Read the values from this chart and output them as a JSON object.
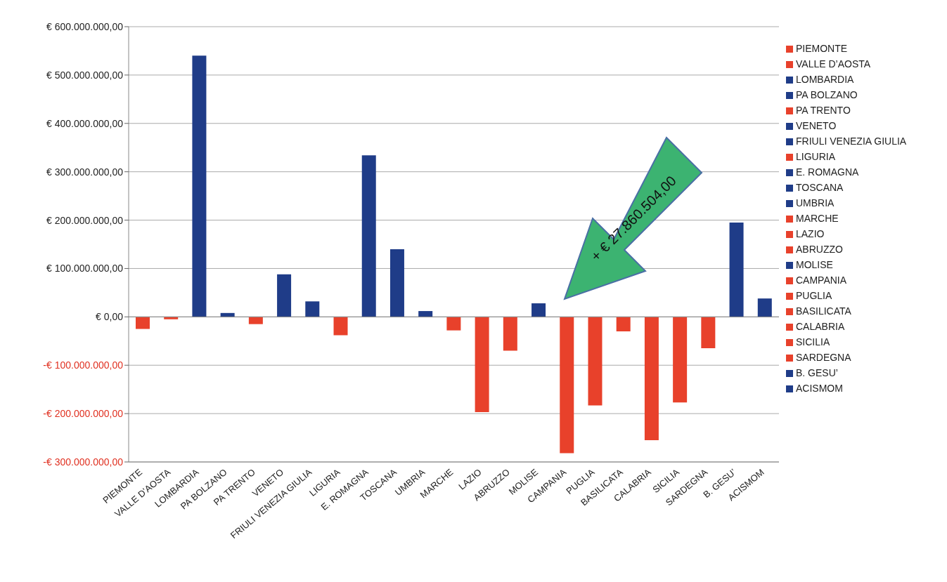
{
  "chart_data": {
    "type": "bar",
    "categories": [
      "PIEMONTE",
      "VALLE D’AOSTA",
      "LOMBARDIA",
      "PA BOLZANO",
      "PA TRENTO",
      "VENETO",
      "FRIULI VENEZIA GIULIA",
      "LIGURIA",
      "E. ROMAGNA",
      "TOSCANA",
      "UMBRIA",
      "MARCHE",
      "LAZIO",
      "ABRUZZO",
      "MOLISE",
      "CAMPANIA",
      "PUGLIA",
      "BASILICATA",
      "CALABRIA",
      "SICILIA",
      "SARDEGNA",
      "B. GESU’",
      "ACISMOM"
    ],
    "series": [
      {
        "name": "PIEMONTE",
        "color": "#e8412b",
        "values": [
          -25000000,
          null,
          null,
          null,
          null,
          null,
          null,
          null,
          null,
          null,
          null,
          null,
          null,
          null,
          null,
          null,
          null,
          null,
          null,
          null,
          null,
          null,
          null
        ]
      },
      {
        "name": "VALLE D’AOSTA",
        "color": "#e8412b",
        "values": [
          null,
          -5000000,
          null,
          null,
          null,
          null,
          null,
          null,
          null,
          null,
          null,
          null,
          null,
          null,
          null,
          null,
          null,
          null,
          null,
          null,
          null,
          null,
          null
        ]
      },
      {
        "name": "LOMBARDIA",
        "color": "#1f3c88",
        "values": [
          null,
          null,
          540000000,
          null,
          null,
          null,
          null,
          null,
          null,
          null,
          null,
          null,
          null,
          null,
          null,
          null,
          null,
          null,
          null,
          null,
          null,
          null,
          null
        ]
      },
      {
        "name": "PA BOLZANO",
        "color": "#1f3c88",
        "values": [
          null,
          null,
          null,
          8000000,
          null,
          null,
          null,
          null,
          null,
          null,
          null,
          null,
          null,
          null,
          null,
          null,
          null,
          null,
          null,
          null,
          null,
          null,
          null
        ]
      },
      {
        "name": "PA TRENTO",
        "color": "#e8412b",
        "values": [
          null,
          null,
          null,
          null,
          -15000000,
          null,
          null,
          null,
          null,
          null,
          null,
          null,
          null,
          null,
          null,
          null,
          null,
          null,
          null,
          null,
          null,
          null,
          null
        ]
      },
      {
        "name": "VENETO",
        "color": "#1f3c88",
        "values": [
          null,
          null,
          null,
          null,
          null,
          88000000,
          null,
          null,
          null,
          null,
          null,
          null,
          null,
          null,
          null,
          null,
          null,
          null,
          null,
          null,
          null,
          null,
          null
        ]
      },
      {
        "name": "FRIULI VENEZIA GIULIA",
        "color": "#1f3c88",
        "values": [
          null,
          null,
          null,
          null,
          null,
          null,
          32000000,
          null,
          null,
          null,
          null,
          null,
          null,
          null,
          null,
          null,
          null,
          null,
          null,
          null,
          null,
          null,
          null
        ]
      },
      {
        "name": "LIGURIA",
        "color": "#e8412b",
        "values": [
          null,
          null,
          null,
          null,
          null,
          null,
          null,
          -38000000,
          null,
          null,
          null,
          null,
          null,
          null,
          null,
          null,
          null,
          null,
          null,
          null,
          null,
          null,
          null
        ]
      },
      {
        "name": "E. ROMAGNA",
        "color": "#1f3c88",
        "values": [
          null,
          null,
          null,
          null,
          null,
          null,
          null,
          null,
          334000000,
          null,
          null,
          null,
          null,
          null,
          null,
          null,
          null,
          null,
          null,
          null,
          null,
          null,
          null
        ]
      },
      {
        "name": "TOSCANA",
        "color": "#1f3c88",
        "values": [
          null,
          null,
          null,
          null,
          null,
          null,
          null,
          null,
          null,
          140000000,
          null,
          null,
          null,
          null,
          null,
          null,
          null,
          null,
          null,
          null,
          null,
          null,
          null
        ]
      },
      {
        "name": "UMBRIA",
        "color": "#1f3c88",
        "values": [
          null,
          null,
          null,
          null,
          null,
          null,
          null,
          null,
          null,
          null,
          12000000,
          null,
          null,
          null,
          null,
          null,
          null,
          null,
          null,
          null,
          null,
          null,
          null
        ]
      },
      {
        "name": "MARCHE",
        "color": "#e8412b",
        "values": [
          null,
          null,
          null,
          null,
          null,
          null,
          null,
          null,
          null,
          null,
          null,
          -28000000,
          null,
          null,
          null,
          null,
          null,
          null,
          null,
          null,
          null,
          null,
          null
        ]
      },
      {
        "name": "LAZIO",
        "color": "#e8412b",
        "values": [
          null,
          null,
          null,
          null,
          null,
          null,
          null,
          null,
          null,
          null,
          null,
          null,
          -197000000,
          null,
          null,
          null,
          null,
          null,
          null,
          null,
          null,
          null,
          null
        ]
      },
      {
        "name": "ABRUZZO",
        "color": "#e8412b",
        "values": [
          null,
          null,
          null,
          null,
          null,
          null,
          null,
          null,
          null,
          null,
          null,
          null,
          null,
          -70000000,
          null,
          null,
          null,
          null,
          null,
          null,
          null,
          null,
          null
        ]
      },
      {
        "name": "MOLISE",
        "color": "#1f3c88",
        "values": [
          null,
          null,
          null,
          null,
          null,
          null,
          null,
          null,
          null,
          null,
          null,
          null,
          null,
          null,
          28000000,
          null,
          null,
          null,
          null,
          null,
          null,
          null,
          null
        ]
      },
      {
        "name": "CAMPANIA",
        "color": "#e8412b",
        "values": [
          null,
          null,
          null,
          null,
          null,
          null,
          null,
          null,
          null,
          null,
          null,
          null,
          null,
          null,
          null,
          -282000000,
          null,
          null,
          null,
          null,
          null,
          null,
          null
        ]
      },
      {
        "name": "PUGLIA",
        "color": "#e8412b",
        "values": [
          null,
          null,
          null,
          null,
          null,
          null,
          null,
          null,
          null,
          null,
          null,
          null,
          null,
          null,
          null,
          null,
          -183000000,
          null,
          null,
          null,
          null,
          null,
          null
        ]
      },
      {
        "name": "BASILICATA",
        "color": "#e8412b",
        "values": [
          null,
          null,
          null,
          null,
          null,
          null,
          null,
          null,
          null,
          null,
          null,
          null,
          null,
          null,
          null,
          null,
          null,
          -30000000,
          null,
          null,
          null,
          null,
          null
        ]
      },
      {
        "name": "CALABRIA",
        "color": "#e8412b",
        "values": [
          null,
          null,
          null,
          null,
          null,
          null,
          null,
          null,
          null,
          null,
          null,
          null,
          null,
          null,
          null,
          null,
          null,
          null,
          -255000000,
          null,
          null,
          null,
          null
        ]
      },
      {
        "name": "SICILIA",
        "color": "#e8412b",
        "values": [
          null,
          null,
          null,
          null,
          null,
          null,
          null,
          null,
          null,
          null,
          null,
          null,
          null,
          null,
          null,
          null,
          null,
          null,
          null,
          -177000000,
          null,
          null,
          null
        ]
      },
      {
        "name": "SARDEGNA",
        "color": "#e8412b",
        "values": [
          null,
          null,
          null,
          null,
          null,
          null,
          null,
          null,
          null,
          null,
          null,
          null,
          null,
          null,
          null,
          null,
          null,
          null,
          null,
          null,
          -65000000,
          null,
          null
        ]
      },
      {
        "name": "B. GESU’",
        "color": "#1f3c88",
        "values": [
          null,
          null,
          null,
          null,
          null,
          null,
          null,
          null,
          null,
          null,
          null,
          null,
          null,
          null,
          null,
          null,
          null,
          null,
          null,
          null,
          null,
          195000000,
          null
        ]
      },
      {
        "name": "ACISMOM",
        "color": "#1f3c88",
        "values": [
          null,
          null,
          null,
          null,
          null,
          null,
          null,
          null,
          null,
          null,
          null,
          null,
          null,
          null,
          null,
          null,
          null,
          null,
          null,
          null,
          null,
          null,
          38000000
        ]
      }
    ],
    "ylim": [
      -300000000,
      600000000
    ],
    "yticks": [
      {
        "value": -300000000,
        "label": "-€ 300.000.000,00"
      },
      {
        "value": -200000000,
        "label": "-€ 200.000.000,00"
      },
      {
        "value": -100000000,
        "label": "-€ 100.000.000,00"
      },
      {
        "value": 0,
        "label": "€ 0,00"
      },
      {
        "value": 100000000,
        "label": "€ 100.000.000,00"
      },
      {
        "value": 200000000,
        "label": "€ 200.000.000,00"
      },
      {
        "value": 300000000,
        "label": "€ 300.000.000,00"
      },
      {
        "value": 400000000,
        "label": "€ 400.000.000,00"
      },
      {
        "value": 500000000,
        "label": "€ 500.000.000,00"
      },
      {
        "value": 600000000,
        "label": "€ 600.000.000,00"
      }
    ],
    "grid": "y",
    "legend": "right",
    "annotations": [
      "+ € 27.860.504,00"
    ]
  }
}
